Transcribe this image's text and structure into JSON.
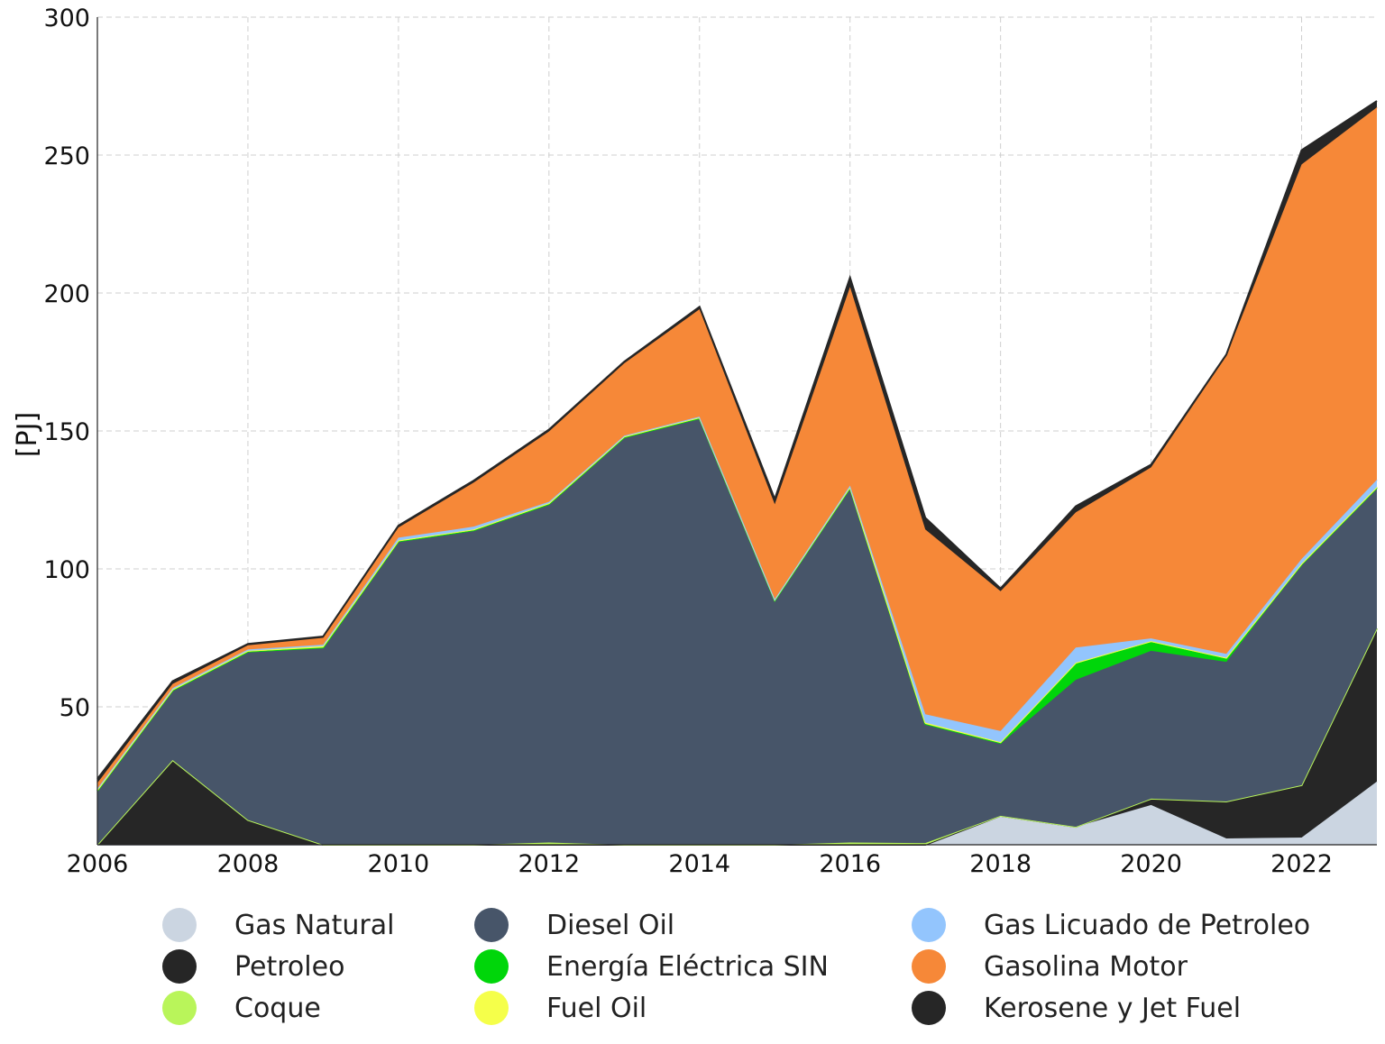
{
  "chart_data": {
    "type": "area",
    "stacked": true,
    "title": "",
    "xlabel": "",
    "ylabel": "[PJ]",
    "xlim": [
      2006,
      2023
    ],
    "ylim": [
      0,
      300
    ],
    "grid": true,
    "legend_position": "bottom",
    "x": [
      2006,
      2007,
      2008,
      2009,
      2010,
      2011,
      2012,
      2013,
      2014,
      2015,
      2016,
      2017,
      2018,
      2019,
      2020,
      2021,
      2022,
      2023
    ],
    "x_ticks": [
      "2006",
      "2008",
      "2010",
      "2012",
      "2014",
      "2016",
      "2018",
      "2020",
      "2022"
    ],
    "y_ticks": [
      "50",
      "100",
      "150",
      "200",
      "250",
      "300"
    ],
    "series": [
      {
        "name": "Gas Natural",
        "color": "#cbd5e1",
        "values": [
          0,
          0,
          0,
          0,
          0,
          0,
          0,
          0,
          0,
          0,
          0,
          0,
          10.5,
          6.5,
          14.4,
          2.3,
          2.6,
          22.9
        ]
      },
      {
        "name": "Petroleo",
        "color": "#262626",
        "values": [
          0,
          30.7,
          9,
          0,
          0,
          0,
          0,
          0,
          0,
          0,
          0,
          0,
          0,
          0,
          2.3,
          13.4,
          19,
          55.5
        ]
      },
      {
        "name": "Coque",
        "color": "#b9f55a",
        "values": [
          0,
          0,
          0,
          0,
          0,
          0,
          0.8,
          0,
          0,
          0,
          0.8,
          0.6,
          0,
          0,
          0,
          0,
          0,
          0
        ]
      },
      {
        "name": "Diesel Oil",
        "color": "#475569",
        "values": [
          19.6,
          25.3,
          61,
          71.5,
          110,
          114,
          122.7,
          147.7,
          154.6,
          88.6,
          128.6,
          43.2,
          26.1,
          53.3,
          53.6,
          50.6,
          80,
          51
        ]
      },
      {
        "name": "Energía Eléctrica SIN",
        "color": "#00d60a",
        "values": [
          0,
          0,
          0,
          0,
          0,
          0,
          0,
          0,
          0,
          0,
          0,
          0,
          0.3,
          5.9,
          3.2,
          1.2,
          0,
          0
        ]
      },
      {
        "name": "Fuel Oil",
        "color": "#f5ff4a",
        "values": [
          0.3,
          0.3,
          0.3,
          0.5,
          0.3,
          0.3,
          0.3,
          0.3,
          0.3,
          0.3,
          0.3,
          0.5,
          0.3,
          0.3,
          0.3,
          0.3,
          0.3,
          0.3
        ]
      },
      {
        "name": "Gas Licuado de Petroleo",
        "color": "#93c5fd",
        "values": [
          0.5,
          0.5,
          0.5,
          0.5,
          1,
          1,
          0.5,
          0.3,
          0.3,
          0.2,
          0.5,
          3,
          4,
          5.5,
          1,
          1.4,
          1.7,
          2.6
        ]
      },
      {
        "name": "Gasolina Motor",
        "color": "#f68838",
        "values": [
          2,
          1.5,
          1.5,
          2.5,
          3.7,
          16,
          25.5,
          26.2,
          38.9,
          34.3,
          72,
          67,
          50.7,
          49,
          62,
          108,
          143,
          135
        ]
      },
      {
        "name": "Kerosene y Jet Fuel",
        "color": "#262626",
        "values": [
          1.5,
          1,
          0.5,
          0.5,
          0.7,
          0.7,
          0.7,
          0.6,
          0.9,
          1.9,
          3.4,
          4.2,
          1,
          2.2,
          1,
          0.5,
          5.2,
          2.3
        ]
      }
    ]
  }
}
